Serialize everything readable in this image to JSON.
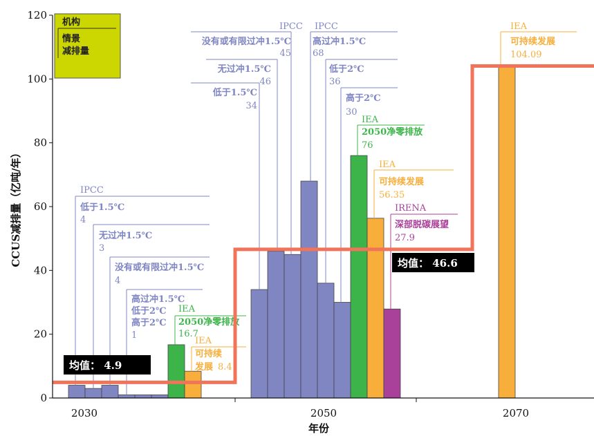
{
  "chart_data": {
    "type": "bar",
    "xlabel": "年份",
    "ylabel": "CCUS减排量（亿吨/年）",
    "ylim": [
      0,
      120
    ],
    "yticks": [
      0,
      20,
      40,
      60,
      80,
      100,
      120
    ],
    "xticks": [
      "2030",
      "2050",
      "2070"
    ],
    "grid": false,
    "legend": {
      "position": "top-left",
      "line1": "机构",
      "line2": "情景",
      "line3": "减排量"
    },
    "colors": {
      "ipcc": "#7f86c2",
      "iea_green": "#3cb44a",
      "iea_orange": "#f7ae3b",
      "irena": "#a9409a",
      "avg_line": "#f0735a",
      "legend_bg": "#ccd600"
    },
    "groups": [
      {
        "year": "2030",
        "bars": [
          {
            "source": "IPCC",
            "scenario": "低于1.5℃",
            "value": 4,
            "value_label": "4",
            "color": "#7f86c2"
          },
          {
            "source": "",
            "scenario": "",
            "value": 3,
            "value_label": "",
            "color": "#7f86c2"
          },
          {
            "source": "",
            "scenario": "",
            "value": 4,
            "value_label": "",
            "color": "#7f86c2"
          },
          {
            "source": "",
            "scenario": "",
            "value": 1,
            "value_label": "",
            "color": "#7f86c2"
          },
          {
            "source": "",
            "scenario": "",
            "value": 1,
            "value_label": "",
            "color": "#7f86c2"
          },
          {
            "source": "",
            "scenario": "",
            "value": 1,
            "value_label": "",
            "color": "#7f86c2"
          },
          {
            "source": "IEA",
            "scenario": "2050净零排放",
            "value": 16.7,
            "value_label": "16.7",
            "color": "#3cb44a"
          },
          {
            "source": "IEA",
            "scenario": "可持续发展",
            "value": 8.4,
            "value_label": "8.4",
            "color": "#f7ae3b"
          }
        ]
      },
      {
        "year": "2050",
        "bars": [
          {
            "source": "",
            "scenario": "",
            "value": 34,
            "value_label": "",
            "color": "#7f86c2"
          },
          {
            "source": "",
            "scenario": "",
            "value": 46,
            "value_label": "",
            "color": "#7f86c2"
          },
          {
            "source": "",
            "scenario": "",
            "value": 45,
            "value_label": "",
            "color": "#7f86c2"
          },
          {
            "source": "",
            "scenario": "",
            "value": 68,
            "value_label": "",
            "color": "#7f86c2"
          },
          {
            "source": "",
            "scenario": "",
            "value": 36,
            "value_label": "",
            "color": "#7f86c2"
          },
          {
            "source": "",
            "scenario": "",
            "value": 30,
            "value_label": "",
            "color": "#7f86c2"
          },
          {
            "source": "IEA",
            "scenario": "2050净零排放",
            "value": 76,
            "value_label": "76",
            "color": "#3cb44a"
          },
          {
            "source": "IEA",
            "scenario": "可持续发展",
            "value": 56.35,
            "value_label": "56.35",
            "color": "#f7ae3b"
          },
          {
            "source": "IRENA",
            "scenario": "深部脱碳展望",
            "value": 27.9,
            "value_label": "27.9",
            "color": "#a9409a"
          }
        ]
      },
      {
        "year": "2070",
        "bars": [
          {
            "source": "IEA",
            "scenario": "可持续发展",
            "value": 104.09,
            "value_label": "104.09",
            "color": "#f7ae3b"
          }
        ]
      }
    ],
    "ipcc_2030_lines": [
      {
        "scenario": "无过冲1.5℃",
        "value": "3"
      },
      {
        "scenario": "没有或有限过冲1.5℃",
        "value": "4"
      },
      {
        "scenario": "高过冲1.5℃",
        "value": ""
      },
      {
        "scenario": "低于2℃",
        "value": ""
      },
      {
        "scenario": "高于2℃",
        "value": "1"
      }
    ],
    "ipcc_2050_left": [
      {
        "scenario": "没有或有限过冲1.5℃",
        "value": "45"
      },
      {
        "scenario": "无过冲1.5℃",
        "value": "46"
      },
      {
        "scenario": "低于1.5℃",
        "value": "34"
      }
    ],
    "ipcc_2050_right": [
      {
        "scenario": "高过冲1.5℃",
        "value": "68"
      },
      {
        "scenario": "低于2℃",
        "value": "36"
      },
      {
        "scenario": "高于2℃",
        "value": "30"
      }
    ],
    "ipcc_label": "IPCC",
    "averages": [
      {
        "label": "均值：",
        "value": "4.9",
        "y": 4.9
      },
      {
        "label": "均值：",
        "value": "46.6",
        "y": 46.6
      },
      {
        "label": "",
        "value": "",
        "y": 104.09
      }
    ]
  }
}
